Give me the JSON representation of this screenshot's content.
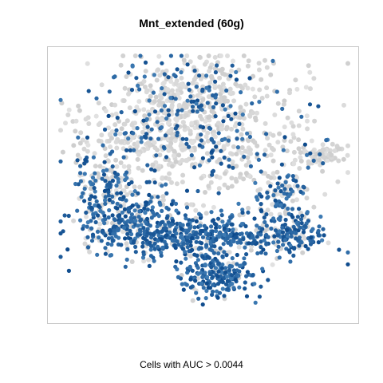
{
  "chart_data": {
    "type": "scatter",
    "title": "Mnt_extended (60g)",
    "xlabel": "Cells with AUC > 0.0044",
    "ylabel": "",
    "grid": false,
    "legend": "none",
    "colors": {
      "low": "#d9d9d9",
      "high": "#0d4a8c",
      "frame": "#c8c8c8"
    },
    "threshold_label": "AUC > 0.0044",
    "point_clouds": [
      {
        "name": "upper-left",
        "cx": -0.33,
        "cy": 0.5,
        "sx": 0.22,
        "sy": 0.18,
        "n": 230,
        "p_high": 0.28
      },
      {
        "name": "top",
        "cx": 0.02,
        "cy": 0.78,
        "sx": 0.3,
        "sy": 0.13,
        "n": 210,
        "p_high": 0.26
      },
      {
        "name": "center",
        "cx": -0.03,
        "cy": 0.32,
        "sx": 0.4,
        "sy": 0.22,
        "n": 520,
        "p_high": 0.2
      },
      {
        "name": "left-lobe",
        "cx": -0.68,
        "cy": 0.0,
        "sx": 0.12,
        "sy": 0.13,
        "n": 150,
        "p_high": 0.55
      },
      {
        "name": "left-lower",
        "cx": -0.52,
        "cy": -0.28,
        "sx": 0.16,
        "sy": 0.11,
        "n": 160,
        "p_high": 0.75
      },
      {
        "name": "bottom-band",
        "cx": -0.08,
        "cy": -0.38,
        "sx": 0.38,
        "sy": 0.1,
        "n": 520,
        "p_high": 0.82
      },
      {
        "name": "bottom-blob",
        "cx": 0.08,
        "cy": -0.7,
        "sx": 0.13,
        "sy": 0.08,
        "n": 210,
        "p_high": 0.92
      },
      {
        "name": "right-top",
        "cx": 0.8,
        "cy": 0.24,
        "sx": 0.08,
        "sy": 0.04,
        "n": 70,
        "p_high": 0.15
      },
      {
        "name": "right-mid",
        "cx": 0.52,
        "cy": -0.08,
        "sx": 0.1,
        "sy": 0.12,
        "n": 110,
        "p_high": 0.55
      },
      {
        "name": "right-lower",
        "cx": 0.62,
        "cy": -0.38,
        "sx": 0.11,
        "sy": 0.06,
        "n": 110,
        "p_high": 0.72
      }
    ],
    "xlim": [
      -1,
      1
    ],
    "ylim": [
      -1,
      1
    ]
  }
}
